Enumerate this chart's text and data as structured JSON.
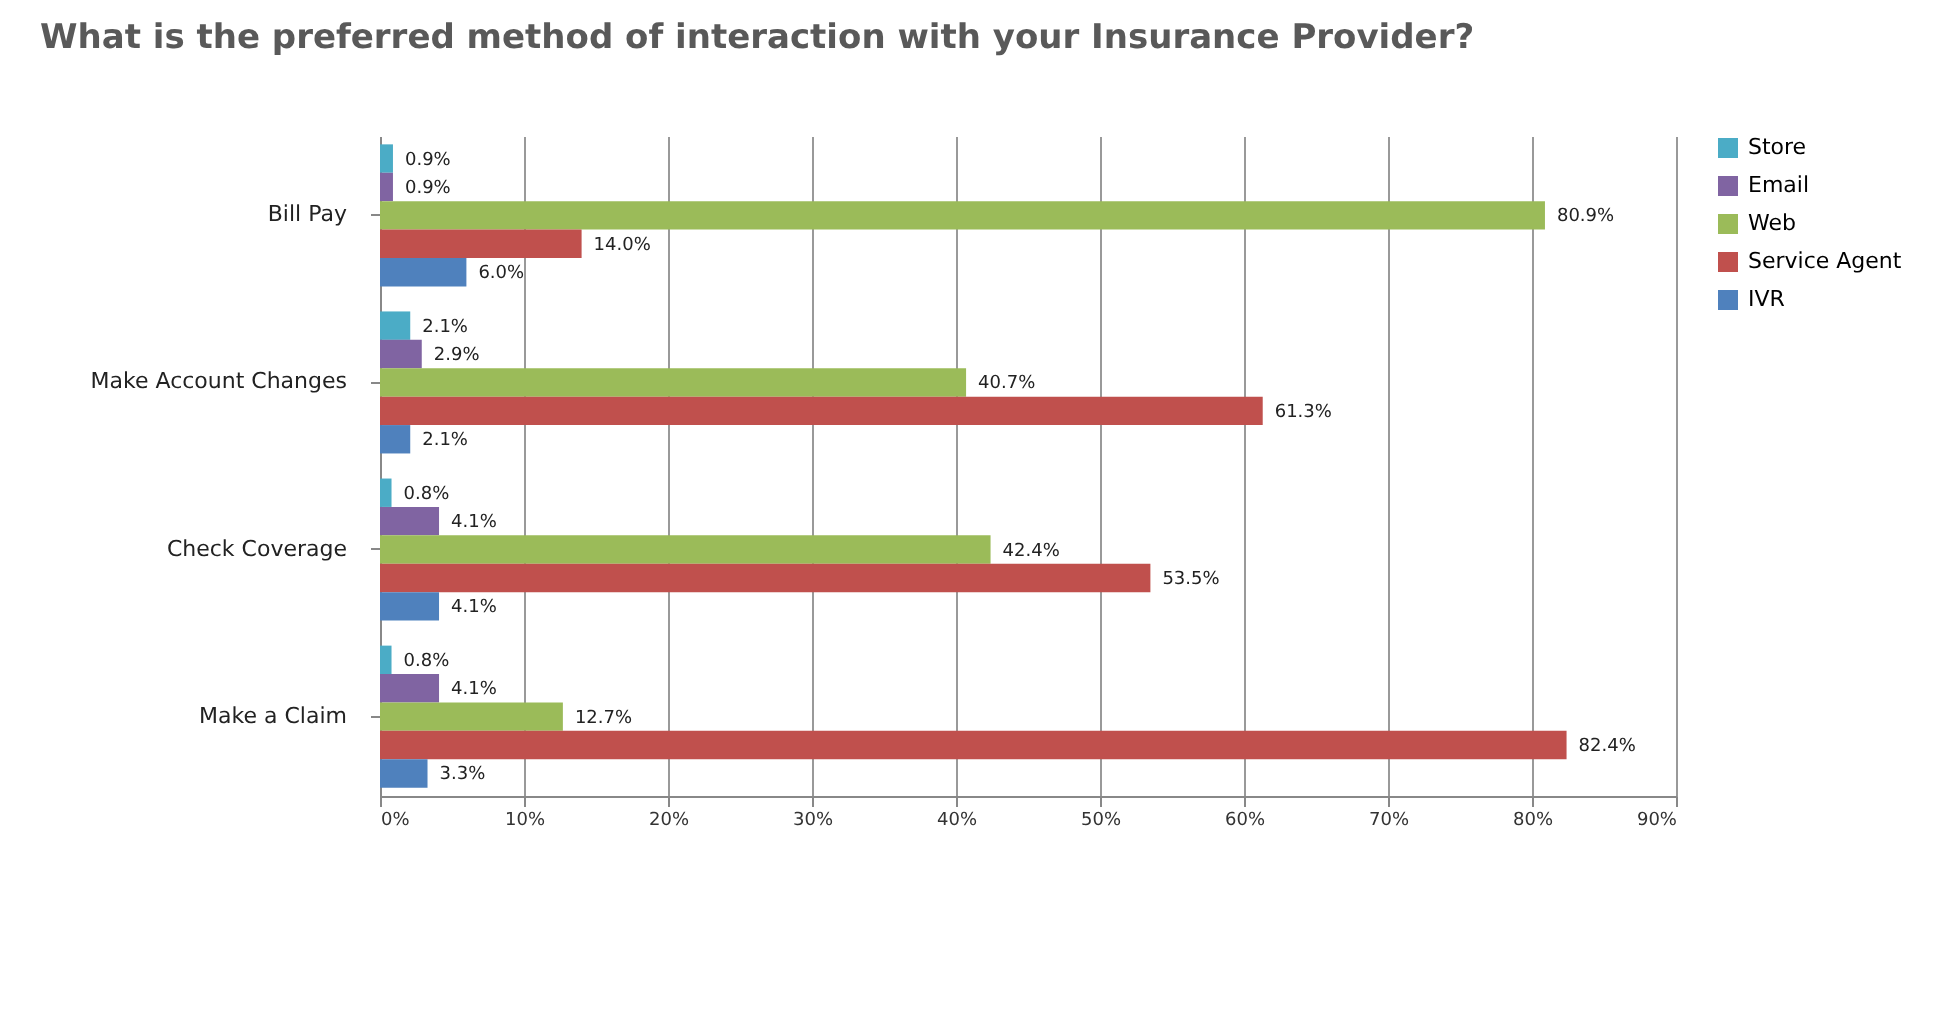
{
  "chart_data": {
    "type": "bar",
    "orientation": "horizontal",
    "title": "What is the preferred method of interaction with your Insurance Provider?",
    "categories": [
      "Bill Pay",
      "Make Account Changes",
      "Check Coverage",
      "Make a Claim"
    ],
    "series": [
      {
        "name": "Store",
        "color": "#4bacc6",
        "values": [
          0.9,
          2.1,
          0.8,
          0.8
        ],
        "value_labels": [
          "0.9%",
          "2.1%",
          "0.8%",
          "0.8%"
        ]
      },
      {
        "name": "Email",
        "color": "#8064a2",
        "values": [
          0.9,
          2.9,
          4.1,
          4.1
        ],
        "value_labels": [
          "0.9%",
          "2.9%",
          "4.1%",
          "4.1%"
        ]
      },
      {
        "name": "Web",
        "color": "#9bbb59",
        "values": [
          80.9,
          40.7,
          42.4,
          12.7
        ],
        "value_labels": [
          "80.9%",
          "40.7%",
          "42.4%",
          "12.7%"
        ]
      },
      {
        "name": "Service Agent",
        "color": "#c0504d",
        "values": [
          14.0,
          61.3,
          53.5,
          82.4
        ],
        "value_labels": [
          "14.0%",
          "61.3%",
          "53.5%",
          "82.4%"
        ]
      },
      {
        "name": "IVR",
        "color": "#4f81bd",
        "values": [
          6.0,
          2.1,
          4.1,
          3.3
        ],
        "value_labels": [
          "6.0%",
          "2.1%",
          "4.1%",
          "3.3%"
        ]
      }
    ],
    "xlim": [
      0,
      90
    ],
    "xticks": [
      {
        "value": 0,
        "label": "0%"
      },
      {
        "value": 10,
        "label": "10%"
      },
      {
        "value": 20,
        "label": "20%"
      },
      {
        "value": 30,
        "label": "30%"
      },
      {
        "value": 40,
        "label": "40%"
      },
      {
        "value": 50,
        "label": "50%"
      },
      {
        "value": 60,
        "label": "60%"
      },
      {
        "value": 70,
        "label": "70%"
      },
      {
        "value": 80,
        "label": "80%"
      },
      {
        "value": 90,
        "label": "90%"
      }
    ],
    "grid": "x",
    "legend": "right"
  }
}
